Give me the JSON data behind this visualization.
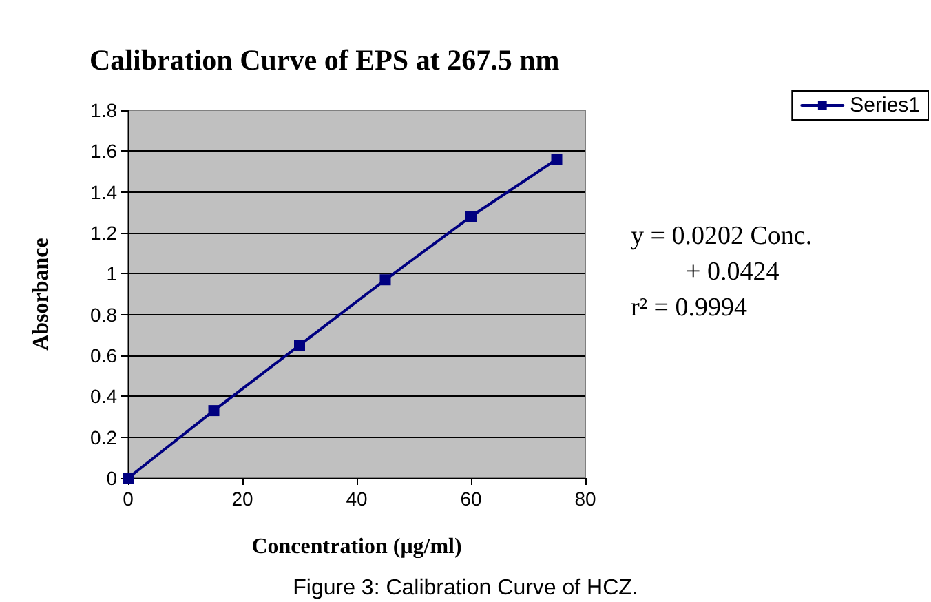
{
  "chart_data": {
    "type": "line",
    "title": "Calibration Curve of EPS at 267.5 nm",
    "xlabel": "Concentration (μg/ml)",
    "ylabel": "Absorbance",
    "x": [
      0,
      15,
      30,
      45,
      60,
      75
    ],
    "series": [
      {
        "name": "Series1",
        "color": "#000080",
        "values": [
          0,
          0.33,
          0.65,
          0.97,
          1.28,
          1.56
        ]
      }
    ],
    "xlim": [
      0,
      80
    ],
    "xticks": [
      0,
      20,
      40,
      60,
      80
    ],
    "ylim": [
      0,
      1.8
    ],
    "yticks": [
      0,
      0.2,
      0.4,
      0.6,
      0.8,
      1,
      1.2,
      1.4,
      1.6,
      1.8
    ],
    "grid": "y",
    "legend": "top right",
    "marker": "square",
    "line_style": "solid",
    "annotations": [
      "y = 0.0202 Conc.",
      "+ 0.0424",
      "r² = 0.9994",
      "Figure 3: Calibration Curve of HCZ."
    ]
  }
}
